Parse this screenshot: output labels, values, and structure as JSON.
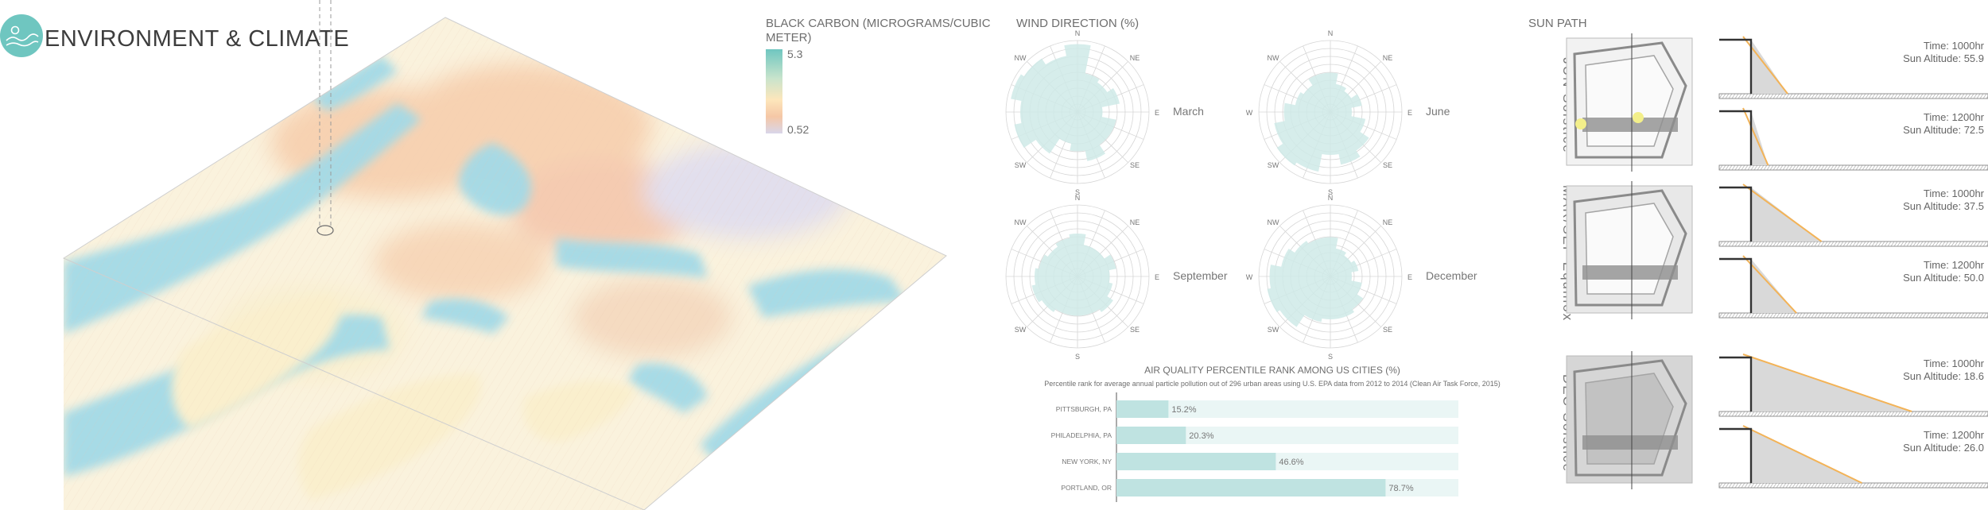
{
  "header": {
    "title": "ENVIRONMENT & CLIMATE",
    "logo_icon": "landscape-icon"
  },
  "legend": {
    "title": "BLACK CARBON (MICROGRAMS/CUBIC METER)",
    "max": "5.3",
    "min": "0.52"
  },
  "wind": {
    "title": "WIND DIRECTION (%)",
    "directions": {
      "n": "N",
      "ne": "NE",
      "e": "E",
      "se": "SE",
      "s": "S",
      "sw": "SW",
      "w": "W",
      "nw": "NW"
    },
    "roses": [
      {
        "label": "March",
        "radii": [
          0.95,
          0.55,
          0.5,
          0.6,
          0.35,
          0.55,
          0.55,
          0.7,
          0.55,
          0.45,
          0.7,
          0.9,
          0.8,
          0.95,
          0.9,
          0.8
        ]
      },
      {
        "label": "June",
        "radii": [
          0.55,
          0.4,
          0.35,
          0.45,
          0.3,
          0.5,
          0.65,
          0.75,
          0.6,
          0.85,
          0.9,
          0.8,
          0.65,
          0.5,
          0.45,
          0.55
        ]
      },
      {
        "label": "September",
        "radii": [
          0.6,
          0.45,
          0.45,
          0.55,
          0.45,
          0.5,
          0.6,
          0.55,
          0.55,
          0.55,
          0.6,
          0.65,
          0.6,
          0.55,
          0.5,
          0.55
        ]
      },
      {
        "label": "December",
        "radii": [
          0.55,
          0.4,
          0.35,
          0.4,
          0.3,
          0.45,
          0.55,
          0.6,
          0.6,
          0.65,
          0.85,
          0.9,
          0.85,
          0.7,
          0.6,
          0.55
        ]
      }
    ]
  },
  "air_quality": {
    "title": "AIR QUALITY PERCENTILE RANK AMONG US CITIES (%)",
    "subtitle": "Percentile rank for average annual particle pollution out of 296 urban areas using U.S. EPA data from 2012 to 2014 (Clean Air Task Force, 2015)"
  },
  "chart_data": {
    "type": "bar",
    "categories": [
      "PITTSBURGH, PA",
      "PHILADELPHIA, PA",
      "NEW YORK, NY",
      "PORTLAND, OR"
    ],
    "values": [
      15.2,
      20.3,
      46.6,
      78.7
    ],
    "value_labels": [
      "15.2%",
      "20.3%",
      "46.6%",
      "78.7%"
    ],
    "title": "AIR QUALITY PERCENTILE RANK AMONG US CITIES (%)",
    "xlim": [
      0,
      100
    ],
    "orientation": "horizontal",
    "colors": {
      "bar": "#bfe3e1",
      "track": "#eaf6f5"
    }
  },
  "sun_path": {
    "title": "SUN PATH",
    "groups": [
      {
        "label": "JUN Solstice",
        "rows": [
          {
            "time": "Time: 1000hr",
            "altitude": "Sun Altitude: 55.9",
            "alt_deg": 55.9
          },
          {
            "time": "Time: 1200hr",
            "altitude": "Sun Altitude: 72.5",
            "alt_deg": 72.5
          }
        ]
      },
      {
        "label": "MAR/SEP Equinox",
        "rows": [
          {
            "time": "Time: 1000hr",
            "altitude": "Sun Altitude: 37.5",
            "alt_deg": 37.5
          },
          {
            "time": "Time: 1200hr",
            "altitude": "Sun Altitude: 50.0",
            "alt_deg": 50.0
          }
        ]
      },
      {
        "label": "DEC Solstice",
        "rows": [
          {
            "time": "Time: 1000hr",
            "altitude": "Sun Altitude: 18.6",
            "alt_deg": 18.6
          },
          {
            "time": "Time: 1200hr",
            "altitude": "Sun Altitude: 26.0",
            "alt_deg": 26.0
          }
        ]
      }
    ]
  },
  "colors": {
    "accent": "#6fc6c0",
    "sun_ray": "#f3b357",
    "text": "#5a5a5a"
  }
}
